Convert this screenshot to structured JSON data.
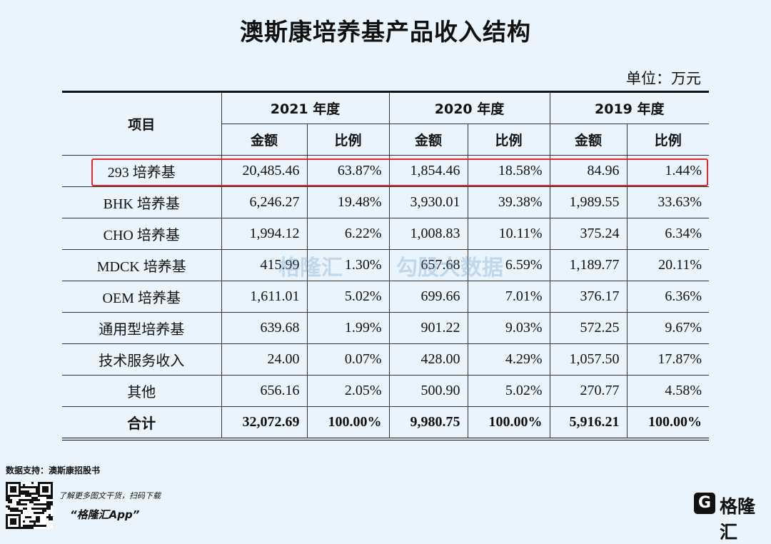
{
  "header": {
    "title": "澳斯康培养基产品收入结构",
    "unit": "单位：万元"
  },
  "table": {
    "corner": "项目",
    "years": [
      "2021 年度",
      "2020 年度",
      "2019 年度"
    ],
    "subheaders": [
      "金额",
      "比例",
      "金额",
      "比例",
      "金额",
      "比例"
    ],
    "rows": [
      [
        "293 培养基",
        "20,485.46",
        "63.87%",
        "1,854.46",
        "18.58%",
        "84.96",
        "1.44%"
      ],
      [
        "BHK 培养基",
        "6,246.27",
        "19.48%",
        "3,930.01",
        "39.38%",
        "1,989.55",
        "33.63%"
      ],
      [
        "CHO 培养基",
        "1,994.12",
        "6.22%",
        "1,008.83",
        "10.11%",
        "375.24",
        "6.34%"
      ],
      [
        "MDCK 培养基",
        "415.99",
        "1.30%",
        "657.68",
        "6.59%",
        "1,189.77",
        "20.11%"
      ],
      [
        "OEM 培养基",
        "1,611.01",
        "5.02%",
        "699.66",
        "7.01%",
        "376.17",
        "6.36%"
      ],
      [
        "通用型培养基",
        "639.68",
        "1.99%",
        "901.22",
        "9.03%",
        "572.25",
        "9.67%"
      ],
      [
        "技术服务收入",
        "24.00",
        "0.07%",
        "428.00",
        "4.29%",
        "1,057.50",
        "17.87%"
      ],
      [
        "其他",
        "656.16",
        "2.05%",
        "500.90",
        "5.02%",
        "270.77",
        "4.58%"
      ],
      [
        "合计",
        "32,072.69",
        "100.00%",
        "9,980.75",
        "100.00%",
        "5,916.21",
        "100.00%"
      ]
    ]
  },
  "watermark": {
    "brand": "格隆汇",
    "data": "勾股大数据"
  },
  "footer": {
    "source": "数据支持：澳斯康招股书",
    "promo": "了解更多图文干货，扫码下载",
    "app": "“格隆汇App”",
    "logo": "格隆汇"
  }
}
